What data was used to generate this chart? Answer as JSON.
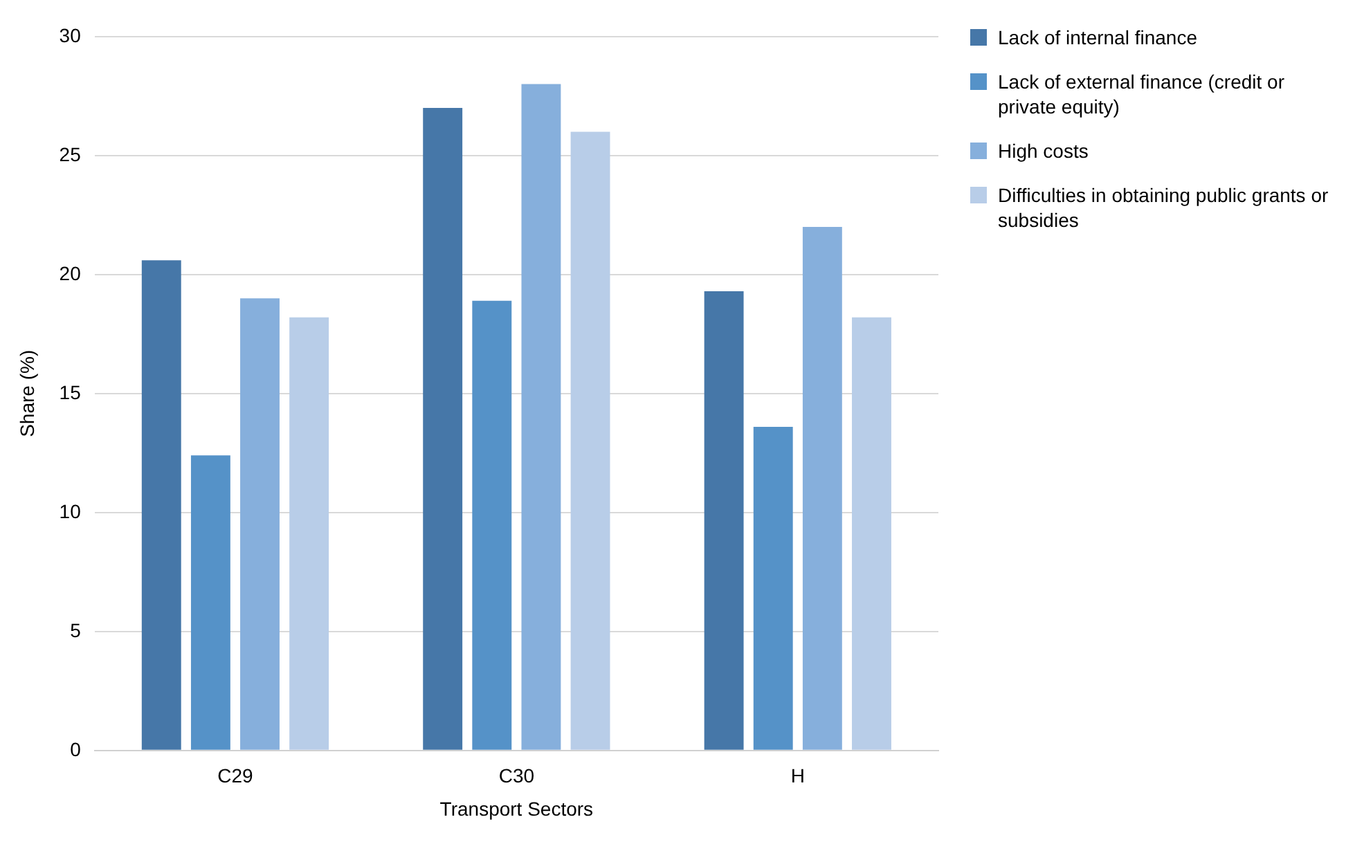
{
  "chart_data": {
    "type": "bar",
    "xlabel": "Transport Sectors",
    "ylabel": "Share (%)",
    "categories": [
      "C29",
      "C30",
      "H"
    ],
    "series": [
      {
        "name": "Lack of internal finance",
        "color": "#4677a8",
        "values": [
          20.6,
          27.0,
          19.3
        ]
      },
      {
        "name": "Lack of external finance (credit or private equity)",
        "color": "#5592c8",
        "values": [
          12.4,
          18.9,
          13.6
        ]
      },
      {
        "name": "High costs",
        "color": "#86afdc",
        "values": [
          19.0,
          28.0,
          22.0
        ]
      },
      {
        "name": "Difficulties in obtaining public grants or subsidies",
        "color": "#b8cde8",
        "values": [
          18.2,
          26.0,
          18.2
        ]
      }
    ],
    "ylim": [
      0,
      30
    ],
    "yticks": [
      0,
      5,
      10,
      15,
      20,
      25,
      30
    ],
    "grid": "y",
    "legend": "top right"
  }
}
